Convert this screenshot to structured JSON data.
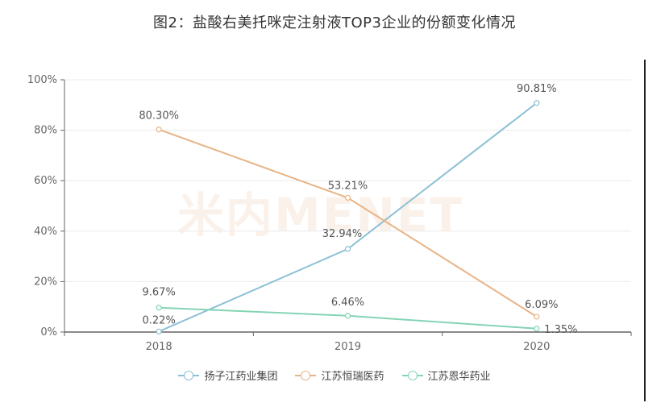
{
  "title": "图2：盐酸右美托咪定注射液TOP3企业的份额变化情况",
  "watermark": "米内MENET",
  "chart_data": {
    "type": "line",
    "categories": [
      "2018",
      "2019",
      "2020"
    ],
    "ylim": [
      0,
      100
    ],
    "yticks": [
      "0%",
      "20%",
      "40%",
      "60%",
      "80%",
      "100%"
    ],
    "series": [
      {
        "name": "扬子江药业集团",
        "color": "#8cc0d4",
        "values": [
          0.22,
          32.94,
          90.81
        ],
        "labels": [
          "0.22%",
          "32.94%",
          "90.81%"
        ]
      },
      {
        "name": "江苏恒瑞医药",
        "color": "#e8b486",
        "values": [
          80.3,
          53.21,
          6.09
        ],
        "labels": [
          "80.30%",
          "53.21%",
          "6.09%"
        ]
      },
      {
        "name": "江苏恩华药业",
        "color": "#84d4b4",
        "values": [
          9.67,
          6.46,
          1.35
        ],
        "labels": [
          "9.67%",
          "6.46%",
          "1.35%"
        ]
      }
    ],
    "grid": true,
    "legend": "bottom"
  }
}
